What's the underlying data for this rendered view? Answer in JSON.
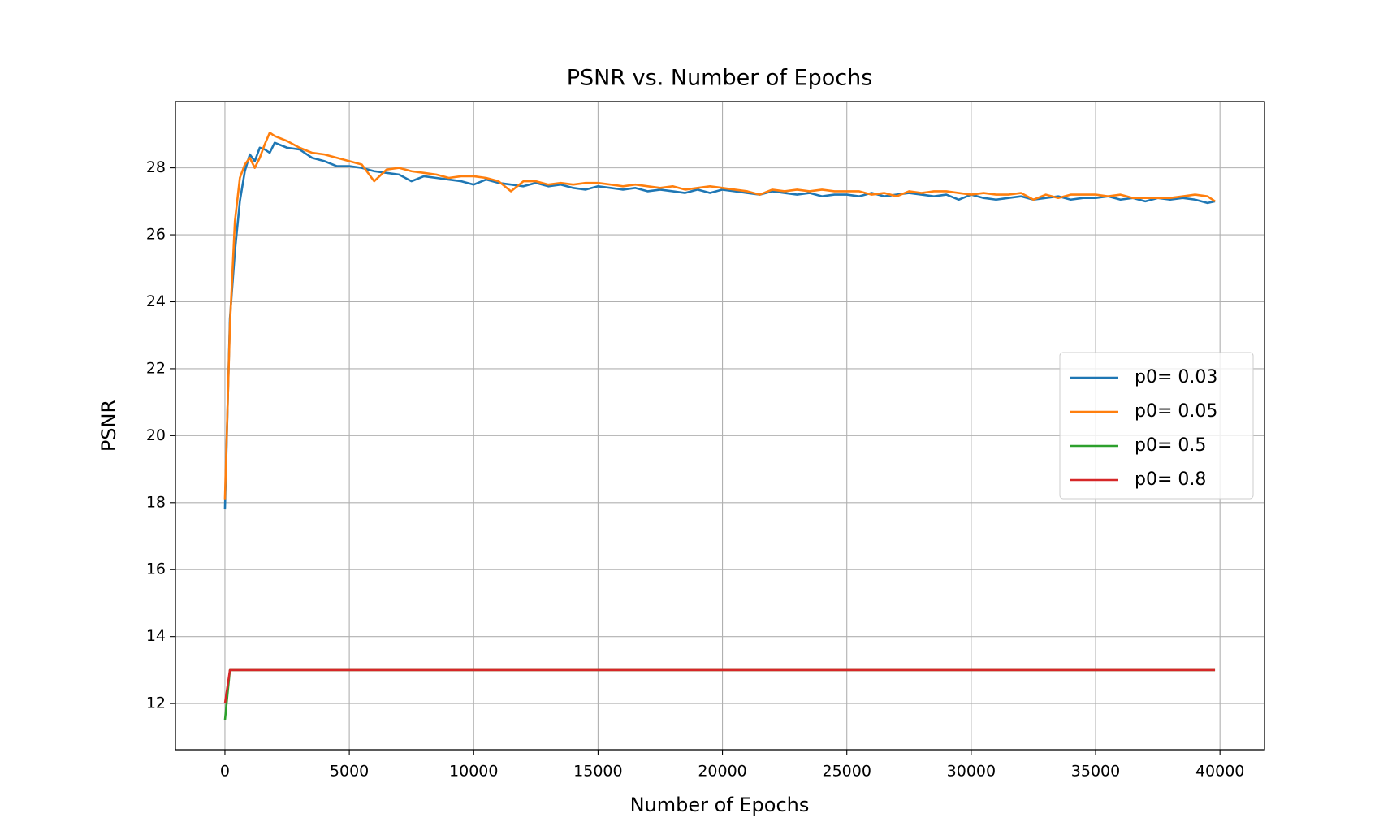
{
  "chart_data": {
    "type": "line",
    "title": "PSNR vs. Number of Epochs",
    "x_label": "Number of Epochs",
    "y_label": "PSNR",
    "x": [
      0,
      200,
      400,
      600,
      800,
      1000,
      1200,
      1400,
      1600,
      1800,
      2000,
      2500,
      3000,
      3500,
      4000,
      4500,
      5000,
      5500,
      6000,
      6500,
      7000,
      7500,
      8000,
      8500,
      9000,
      9500,
      10000,
      10500,
      11000,
      11500,
      12000,
      12500,
      13000,
      13500,
      14000,
      14500,
      15000,
      15500,
      16000,
      16500,
      17000,
      17500,
      18000,
      18500,
      19000,
      19500,
      20000,
      20500,
      21000,
      21500,
      22000,
      22500,
      23000,
      23500,
      24000,
      24500,
      25000,
      25500,
      26000,
      26500,
      27000,
      27500,
      28000,
      28500,
      29000,
      29500,
      30000,
      30500,
      31000,
      31500,
      32000,
      32500,
      33000,
      33500,
      34000,
      34500,
      35000,
      35500,
      36000,
      36500,
      37000,
      37500,
      38000,
      38500,
      39000,
      39500,
      39800
    ],
    "series": [
      {
        "name": "p0= 0.03",
        "color": "#1f77b4",
        "values": [
          17.8,
          23.5,
          25.5,
          27.0,
          27.9,
          28.4,
          28.2,
          28.6,
          28.55,
          28.45,
          28.75,
          28.6,
          28.55,
          28.3,
          28.2,
          28.05,
          28.05,
          28.0,
          27.9,
          27.85,
          27.8,
          27.6,
          27.75,
          27.7,
          27.65,
          27.6,
          27.5,
          27.65,
          27.55,
          27.5,
          27.45,
          27.55,
          27.45,
          27.5,
          27.4,
          27.35,
          27.45,
          27.4,
          27.35,
          27.4,
          27.3,
          27.35,
          27.3,
          27.25,
          27.35,
          27.25,
          27.35,
          27.3,
          27.25,
          27.2,
          27.3,
          27.25,
          27.2,
          27.25,
          27.15,
          27.2,
          27.2,
          27.15,
          27.25,
          27.15,
          27.2,
          27.25,
          27.2,
          27.15,
          27.2,
          27.05,
          27.2,
          27.1,
          27.05,
          27.1,
          27.15,
          27.05,
          27.1,
          27.15,
          27.05,
          27.1,
          27.1,
          27.15,
          27.05,
          27.1,
          27.0,
          27.1,
          27.05,
          27.1,
          27.05,
          26.95,
          27.0
        ]
      },
      {
        "name": "p0= 0.05",
        "color": "#ff7f0e",
        "values": [
          18.1,
          23.3,
          26.4,
          27.7,
          28.1,
          28.3,
          28.0,
          28.3,
          28.7,
          29.05,
          28.95,
          28.8,
          28.6,
          28.45,
          28.4,
          28.3,
          28.2,
          28.1,
          27.6,
          27.95,
          28.0,
          27.9,
          27.85,
          27.8,
          27.7,
          27.75,
          27.75,
          27.7,
          27.6,
          27.3,
          27.6,
          27.6,
          27.5,
          27.55,
          27.5,
          27.55,
          27.55,
          27.5,
          27.45,
          27.5,
          27.45,
          27.4,
          27.45,
          27.35,
          27.4,
          27.45,
          27.4,
          27.35,
          27.3,
          27.2,
          27.35,
          27.3,
          27.35,
          27.3,
          27.35,
          27.3,
          27.3,
          27.3,
          27.2,
          27.25,
          27.15,
          27.3,
          27.25,
          27.3,
          27.3,
          27.25,
          27.2,
          27.25,
          27.2,
          27.2,
          27.25,
          27.05,
          27.2,
          27.1,
          27.2,
          27.2,
          27.2,
          27.15,
          27.2,
          27.1,
          27.1,
          27.1,
          27.1,
          27.15,
          27.2,
          27.15,
          27.0
        ]
      },
      {
        "name": "p0= 0.5",
        "color": "#2ca02c",
        "values": [
          11.5,
          13,
          13,
          13,
          13,
          13,
          13,
          13,
          13,
          13,
          13,
          13,
          13,
          13,
          13,
          13,
          13,
          13,
          13,
          13,
          13,
          13,
          13,
          13,
          13,
          13,
          13,
          13,
          13,
          13,
          13,
          13,
          13,
          13,
          13,
          13,
          13,
          13,
          13,
          13,
          13,
          13,
          13,
          13,
          13,
          13,
          13,
          13,
          13,
          13,
          13,
          13,
          13,
          13,
          13,
          13,
          13,
          13,
          13,
          13,
          13,
          13,
          13,
          13,
          13,
          13,
          13,
          13,
          13,
          13,
          13,
          13,
          13,
          13,
          13,
          13,
          13,
          13,
          13,
          13,
          13,
          13,
          13,
          13,
          13,
          13,
          13
        ]
      },
      {
        "name": "p0= 0.8",
        "color": "#d62728",
        "values": [
          12.0,
          13,
          13,
          13,
          13,
          13,
          13,
          13,
          13,
          13,
          13,
          13,
          13,
          13,
          13,
          13,
          13,
          13,
          13,
          13,
          13,
          13,
          13,
          13,
          13,
          13,
          13,
          13,
          13,
          13,
          13,
          13,
          13,
          13,
          13,
          13,
          13,
          13,
          13,
          13,
          13,
          13,
          13,
          13,
          13,
          13,
          13,
          13,
          13,
          13,
          13,
          13,
          13,
          13,
          13,
          13,
          13,
          13,
          13,
          13,
          13,
          13,
          13,
          13,
          13,
          13,
          13,
          13,
          13,
          13,
          13,
          13,
          13,
          13,
          13,
          13,
          13,
          13,
          13,
          13,
          13,
          13,
          13,
          13,
          13,
          13,
          13
        ]
      }
    ],
    "xlim": [
      -1990,
      41790
    ],
    "ylim": [
      10.62,
      29.98
    ],
    "xticks": [
      0,
      5000,
      10000,
      15000,
      20000,
      25000,
      30000,
      35000,
      40000
    ],
    "yticks": [
      12,
      14,
      16,
      18,
      20,
      22,
      24,
      26,
      28
    ],
    "grid": true,
    "legend": "center right"
  }
}
